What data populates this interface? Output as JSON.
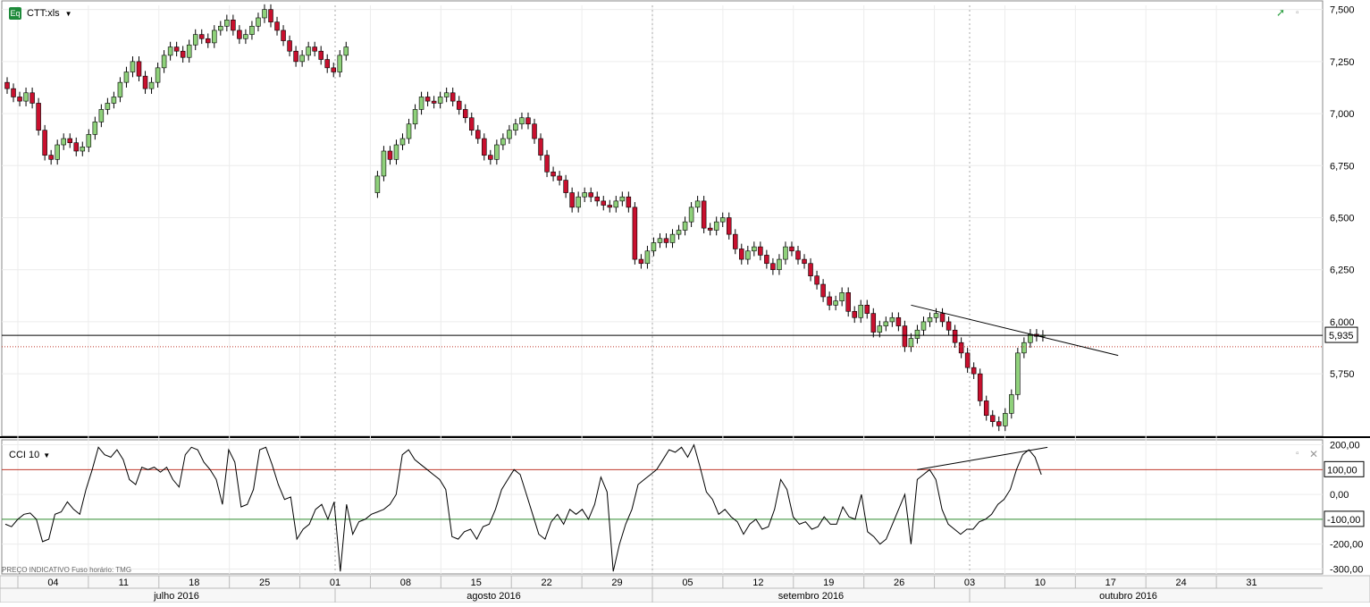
{
  "instrument": {
    "symbol": "CTT:xls",
    "badge": "Eq"
  },
  "indicator": {
    "label": "CCI 10"
  },
  "footer": {
    "note": "PREÇO INDICATIVO   Fuso horário: TMG"
  },
  "colors": {
    "up": "#8fd17b",
    "down": "#c8102e",
    "overbought_line": "#c0392b",
    "oversold_line": "#2e8b2e",
    "current_price_line": "#000000",
    "prev_close_line": "#c0392b"
  },
  "chart_data": [
    {
      "type": "candlestick",
      "title": "",
      "ylim": [
        5.45,
        7.52
      ],
      "y_ticks": [
        "7,500",
        "7,250",
        "7,000",
        "6,750",
        "6,500",
        "6,250",
        "6,000",
        "5,750"
      ],
      "y_tick_values": [
        7.5,
        7.25,
        7.0,
        6.75,
        6.5,
        6.25,
        6.0,
        5.75
      ],
      "current_price": 5.935,
      "current_price_label": "5,935",
      "prev_close": 5.88,
      "trendline": {
        "from_date": "2016-10-03",
        "from_value": 6.08,
        "to_date": "2016-10-13",
        "to_value": 5.86
      },
      "candles_close": [
        7.12,
        7.08,
        7.06,
        7.1,
        7.05,
        6.92,
        6.8,
        6.78,
        6.85,
        6.88,
        6.86,
        6.82,
        6.84,
        6.9,
        6.96,
        7.02,
        7.05,
        7.08,
        7.15,
        7.2,
        7.25,
        7.18,
        7.12,
        7.15,
        7.22,
        7.28,
        7.32,
        7.3,
        7.27,
        7.33,
        7.38,
        7.36,
        7.34,
        7.4,
        7.42,
        7.45,
        7.4,
        7.36,
        7.38,
        7.42,
        7.46,
        7.5,
        7.44,
        7.4,
        7.35,
        7.3,
        7.25,
        7.28,
        7.32,
        7.3,
        7.26,
        7.22,
        7.2,
        7.28,
        7.32,
        6.7,
        6.82,
        6.78,
        6.85,
        6.88,
        6.95,
        7.02,
        7.08,
        7.06,
        7.05,
        7.08,
        7.1,
        7.06,
        7.02,
        6.98,
        6.92,
        6.88,
        6.8,
        6.78,
        6.85,
        6.88,
        6.92,
        6.95,
        6.98,
        6.95,
        6.88,
        6.8,
        6.72,
        6.7,
        6.68,
        6.62,
        6.55,
        6.6,
        6.62,
        6.6,
        6.58,
        6.56,
        6.55,
        6.58,
        6.6,
        6.55,
        6.3,
        6.28,
        6.34,
        6.38,
        6.4,
        6.38,
        6.42,
        6.44,
        6.48,
        6.55,
        6.58,
        6.45,
        6.44,
        6.48,
        6.5,
        6.42,
        6.35,
        6.3,
        6.34,
        6.36,
        6.32,
        6.28,
        6.25,
        6.3,
        6.36,
        6.34,
        6.3,
        6.28,
        6.22,
        6.18,
        6.12,
        6.08,
        6.1,
        6.14,
        6.05,
        6.02,
        6.08,
        6.04,
        5.95,
        5.98,
        6.0,
        6.02,
        5.98,
        5.88,
        5.92,
        5.96,
        6.0,
        6.02,
        6.04,
        6.0,
        5.96,
        5.9,
        5.85,
        5.78,
        5.75,
        5.62,
        5.55,
        5.52,
        5.5,
        5.56,
        5.65,
        5.85,
        5.9,
        5.94,
        5.93,
        5.935
      ],
      "x_tick_labels": [
        "04",
        "11",
        "18",
        "25",
        "01",
        "08",
        "15",
        "22",
        "29",
        "05",
        "12",
        "19",
        "26",
        "03",
        "10",
        "17",
        "24",
        "31"
      ],
      "month_labels": [
        "julho 2016",
        "agosto 2016",
        "setembro 2016",
        "outubro 2016"
      ]
    },
    {
      "type": "line",
      "title": "CCI 10",
      "ylim": [
        -320,
        220
      ],
      "y_ticks": [
        "200,00",
        "0,00",
        "-200,00",
        "-300,00"
      ],
      "y_tick_values": [
        200,
        0,
        -200,
        -300
      ],
      "levels": [
        {
          "value": 100,
          "label": "100,00"
        },
        {
          "value": -100,
          "label": "-100,00"
        }
      ],
      "values": [
        -120,
        -130,
        -100,
        -80,
        -75,
        -100,
        -190,
        -180,
        -80,
        -70,
        -30,
        -60,
        -80,
        20,
        100,
        190,
        160,
        150,
        180,
        140,
        60,
        40,
        110,
        100,
        110,
        90,
        110,
        60,
        30,
        160,
        190,
        180,
        130,
        100,
        60,
        -40,
        180,
        130,
        -50,
        -40,
        20,
        180,
        190,
        120,
        40,
        -20,
        -10,
        -180,
        -140,
        -120,
        -60,
        -40,
        -100,
        -30,
        -310,
        -40,
        -160,
        -110,
        -100,
        -80,
        -70,
        -60,
        -40,
        0,
        160,
        180,
        140,
        120,
        100,
        80,
        60,
        20,
        -170,
        -180,
        -150,
        -140,
        -180,
        -130,
        -120,
        -60,
        20,
        60,
        100,
        80,
        0,
        -80,
        -160,
        -180,
        -110,
        -80,
        -120,
        -60,
        -80,
        -60,
        -100,
        -40,
        70,
        10,
        -310,
        -200,
        -120,
        -60,
        40,
        60,
        80,
        100,
        140,
        180,
        170,
        190,
        150,
        200,
        110,
        10,
        -20,
        -80,
        -60,
        -90,
        -110,
        -160,
        -120,
        -100,
        -140,
        -130,
        -60,
        60,
        20,
        -90,
        -120,
        -110,
        -140,
        -130,
        -90,
        -120,
        -120,
        -50,
        -90,
        -100,
        0,
        -150,
        -170,
        -200,
        -180,
        -120,
        -60,
        0,
        -200,
        60,
        80,
        100,
        60,
        -60,
        -120,
        -140,
        -160,
        -140,
        -140,
        -110,
        -100,
        -80,
        -40,
        -20,
        20,
        100,
        160,
        180,
        150,
        80
      ],
      "trendline": {
        "from_index": 147,
        "from_value": 100,
        "to_index": 168,
        "to_value": 190
      }
    }
  ]
}
